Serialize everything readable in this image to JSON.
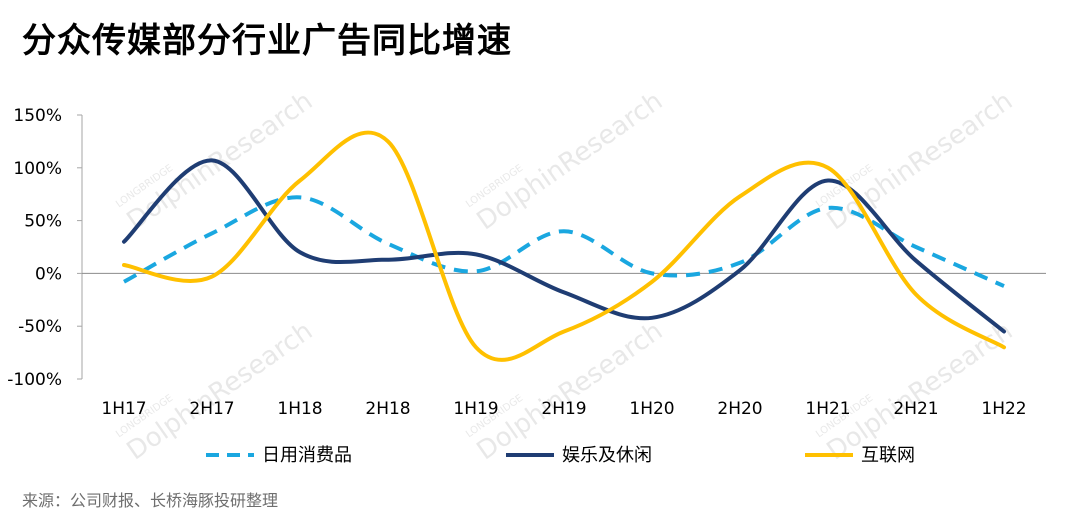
{
  "chart_data": {
    "type": "line",
    "title": "分众传媒部分行业广告同比增速",
    "categories": [
      "1H17",
      "2H17",
      "1H18",
      "2H18",
      "1H19",
      "2H19",
      "1H20",
      "2H20",
      "1H21",
      "2H21",
      "1H22"
    ],
    "y_ticks": [
      "150%",
      "100%",
      "50%",
      "0%",
      "-50%",
      "-100%"
    ],
    "ylim": [
      -100,
      150
    ],
    "y_unit": "%",
    "grid": false,
    "legend_position": "bottom",
    "series": [
      {
        "name": "日用消费品",
        "color": "#1aa7e0",
        "dashed": true,
        "values": [
          -8,
          38,
          72,
          28,
          2,
          40,
          0,
          10,
          62,
          25,
          -12
        ]
      },
      {
        "name": "娱乐及休闲",
        "color": "#1f3d73",
        "dashed": false,
        "values": [
          30,
          107,
          20,
          13,
          18,
          -18,
          -42,
          3,
          88,
          12,
          -55
        ]
      },
      {
        "name": "互联网",
        "color": "#ffc000",
        "dashed": false,
        "values": [
          8,
          -3,
          88,
          125,
          -70,
          -55,
          -8,
          73,
          100,
          -20,
          -70
        ]
      }
    ]
  },
  "watermark": {
    "brand": "LONGBRIDGE",
    "text": "DolphinResearch"
  },
  "source": "来源：公司财报、长桥海豚投研整理"
}
